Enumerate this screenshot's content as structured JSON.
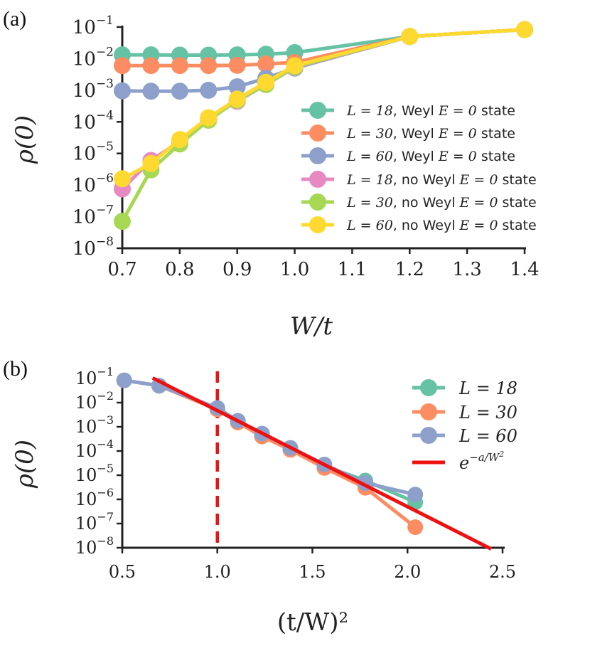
{
  "chart_data": [
    {
      "panel": "(a)",
      "type": "line",
      "xlabel": "W/t",
      "ylabel": "ρ(0)",
      "xlim": [
        0.7,
        1.4
      ],
      "ylim_log10": [
        -8,
        -1
      ],
      "x_ticks": [
        "0.7",
        "0.8",
        "0.9",
        "1.0",
        "1.1",
        "1.2",
        "1.3",
        "1.4"
      ],
      "y_ticks_exp": [
        "−1",
        "−2",
        "−3",
        "−4",
        "−5",
        "−6",
        "−7",
        "−8"
      ],
      "y_tick_base": "10",
      "legend_position": "right",
      "series": [
        {
          "name": "L = 18, Weyl E = 0 state",
          "color": "#66c2a5",
          "x": [
            0.7,
            0.75,
            0.8,
            0.85,
            0.9,
            0.95,
            1.0,
            1.2,
            1.4
          ],
          "log10y": [
            -1.88,
            -1.88,
            -1.89,
            -1.89,
            -1.88,
            -1.86,
            -1.81,
            -1.3,
            -1.08
          ]
        },
        {
          "name": "L = 30, Weyl E = 0 state",
          "color": "#fc8d62",
          "x": [
            0.7,
            0.75,
            0.8,
            0.85,
            0.9,
            0.95,
            1.0,
            1.2,
            1.4
          ],
          "log10y": [
            -2.22,
            -2.22,
            -2.22,
            -2.22,
            -2.21,
            -2.17,
            -2.12,
            -1.3,
            -1.08
          ]
        },
        {
          "name": "L = 60, Weyl E = 0 state",
          "color": "#8da0cb",
          "x": [
            0.7,
            0.75,
            0.8,
            0.85,
            0.9,
            0.95,
            1.0,
            1.2,
            1.4
          ],
          "log10y": [
            -3.02,
            -3.03,
            -3.03,
            -3.0,
            -2.89,
            -2.62,
            -2.3,
            -1.3,
            -1.08
          ]
        },
        {
          "name": "L = 18, no Weyl E = 0 state",
          "color": "#e78ac3",
          "x": [
            0.7,
            0.75,
            0.8,
            0.85,
            0.9,
            0.95,
            1.0,
            1.2,
            1.4
          ],
          "log10y": [
            -6.12,
            -5.22,
            -4.62,
            -3.9,
            -3.35,
            -2.82,
            -2.28,
            -1.3,
            -1.08
          ]
        },
        {
          "name": "L = 30, no Weyl E = 0 state",
          "color": "#a6d854",
          "x": [
            0.7,
            0.75,
            0.8,
            0.85,
            0.9,
            0.95,
            1.0,
            1.2,
            1.4
          ],
          "log10y": [
            -7.15,
            -5.52,
            -4.7,
            -3.95,
            -3.32,
            -2.82,
            -2.26,
            -1.3,
            -1.08
          ]
        },
        {
          "name": "L = 60, no Weyl E = 0 state",
          "color": "#ffd92f",
          "x": [
            0.7,
            0.75,
            0.8,
            0.85,
            0.9,
            0.95,
            1.0,
            1.2,
            1.4
          ],
          "log10y": [
            -5.8,
            -5.32,
            -4.56,
            -3.87,
            -3.28,
            -2.75,
            -2.22,
            -1.3,
            -1.08
          ]
        }
      ]
    },
    {
      "panel": "(b)",
      "type": "line",
      "xlabel": "(t/W)²",
      "ylabel": "ρ(0)",
      "xlim": [
        0.5,
        2.5
      ],
      "ylim_log10": [
        -8,
        -1
      ],
      "x_ticks": [
        "0.5",
        "1.0",
        "1.5",
        "2.0",
        "2.5"
      ],
      "y_ticks_exp": [
        "−1",
        "−2",
        "−3",
        "−4",
        "−5",
        "−6",
        "−7",
        "−8"
      ],
      "y_tick_base": "10",
      "legend_position": "top-right",
      "vline": {
        "x": 1.0,
        "color": "#ee1111",
        "style": "dashed"
      },
      "fit": {
        "name": "e^{−a/W²}",
        "color": "#ee1111",
        "x": [
          0.66,
          2.44
        ],
        "log10y": [
          -0.98,
          -8.05
        ]
      },
      "series": [
        {
          "name": "L = 18",
          "color": "#66c2a5",
          "x": [
            0.51,
            0.694,
            1.0,
            1.108,
            1.235,
            1.384,
            1.563,
            1.778,
            2.041
          ],
          "log10y": [
            -1.08,
            -1.3,
            -2.28,
            -2.78,
            -3.38,
            -3.9,
            -4.62,
            -5.22,
            -6.12
          ]
        },
        {
          "name": "L = 30",
          "color": "#fc8d62",
          "x": [
            0.51,
            0.694,
            1.0,
            1.108,
            1.235,
            1.384,
            1.563,
            1.778,
            2.041
          ],
          "log10y": [
            -1.08,
            -1.3,
            -2.28,
            -2.82,
            -3.4,
            -3.95,
            -4.7,
            -5.52,
            -7.15
          ]
        },
        {
          "name": "L = 60",
          "color": "#8da0cb",
          "x": [
            0.51,
            0.694,
            1.0,
            1.108,
            1.235,
            1.384,
            1.563,
            1.778,
            2.041
          ],
          "log10y": [
            -1.08,
            -1.3,
            -2.22,
            -2.75,
            -3.28,
            -3.87,
            -4.56,
            -5.32,
            -5.8
          ]
        }
      ]
    }
  ],
  "legend_a": {
    "items": [
      {
        "pre": "L = 18",
        "post": ", Weyl ",
        "e": "E = 0",
        "tail": " state"
      },
      {
        "pre": "L = 30",
        "post": ", Weyl ",
        "e": "E = 0",
        "tail": " state"
      },
      {
        "pre": "L = 60",
        "post": ", Weyl ",
        "e": "E = 0",
        "tail": " state"
      },
      {
        "pre": "L = 18",
        "post": ", no Weyl ",
        "e": "E = 0",
        "tail": " state"
      },
      {
        "pre": "L = 30",
        "post": ", no Weyl ",
        "e": "E = 0",
        "tail": " state"
      },
      {
        "pre": "L = 60",
        "post": ", no Weyl ",
        "e": "E = 0",
        "tail": " state"
      }
    ]
  },
  "legend_b": {
    "items": [
      "L = 18",
      "L = 30",
      "L = 60"
    ],
    "fit_base": "e",
    "fit_exp": "−a/W",
    "fit_exp_sq": "2"
  }
}
